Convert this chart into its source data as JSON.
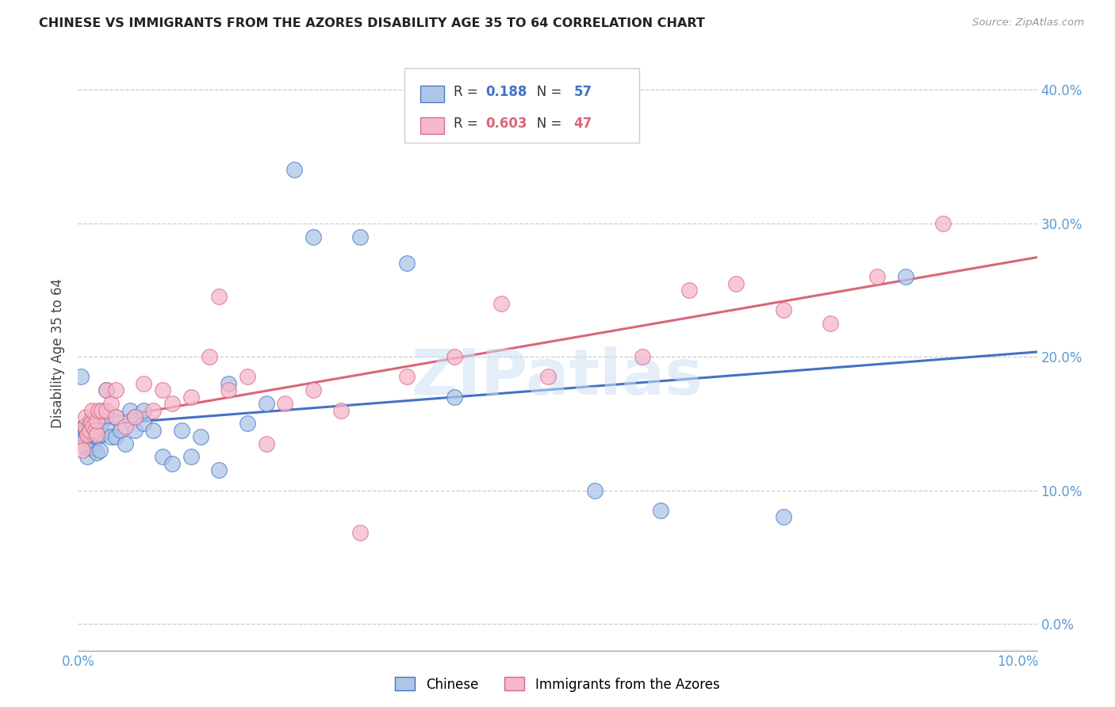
{
  "title": "CHINESE VS IMMIGRANTS FROM THE AZORES DISABILITY AGE 35 TO 64 CORRELATION CHART",
  "source": "Source: ZipAtlas.com",
  "ylabel": "Disability Age 35 to 64",
  "xlim": [
    0.0,
    0.102
  ],
  "ylim": [
    -0.02,
    0.425
  ],
  "ytick_vals": [
    0.0,
    0.1,
    0.2,
    0.3,
    0.4
  ],
  "xtick_vals": [
    0.0,
    0.02,
    0.04,
    0.06,
    0.08,
    0.1
  ],
  "legend_label1": "Chinese",
  "legend_label2": "Immigrants from the Azores",
  "R1": "0.188",
  "N1": "57",
  "R2": "0.603",
  "N2": "47",
  "color_chinese": "#aec6e8",
  "color_azores": "#f5b8cc",
  "line_color_chinese": "#4472c4",
  "line_color_azores": "#d9667a",
  "watermark": "ZIPatlas",
  "chinese_x": [
    0.0003,
    0.0005,
    0.0006,
    0.0007,
    0.0008,
    0.0008,
    0.0009,
    0.001,
    0.001,
    0.001,
    0.0012,
    0.0012,
    0.0013,
    0.0014,
    0.0015,
    0.0016,
    0.0016,
    0.0017,
    0.0018,
    0.002,
    0.002,
    0.0022,
    0.0023,
    0.0024,
    0.0025,
    0.003,
    0.003,
    0.0032,
    0.0035,
    0.004,
    0.004,
    0.0045,
    0.005,
    0.0055,
    0.006,
    0.006,
    0.007,
    0.007,
    0.008,
    0.009,
    0.01,
    0.011,
    0.012,
    0.013,
    0.015,
    0.016,
    0.018,
    0.02,
    0.023,
    0.025,
    0.03,
    0.035,
    0.04,
    0.055,
    0.062,
    0.075,
    0.088
  ],
  "chinese_y": [
    0.185,
    0.145,
    0.148,
    0.14,
    0.138,
    0.145,
    0.135,
    0.125,
    0.132,
    0.142,
    0.135,
    0.15,
    0.138,
    0.142,
    0.148,
    0.132,
    0.15,
    0.145,
    0.14,
    0.128,
    0.14,
    0.14,
    0.13,
    0.148,
    0.142,
    0.175,
    0.155,
    0.145,
    0.14,
    0.14,
    0.155,
    0.145,
    0.135,
    0.16,
    0.145,
    0.155,
    0.15,
    0.16,
    0.145,
    0.125,
    0.12,
    0.145,
    0.125,
    0.14,
    0.115,
    0.18,
    0.15,
    0.165,
    0.34,
    0.29,
    0.29,
    0.27,
    0.17,
    0.1,
    0.085,
    0.08,
    0.26
  ],
  "azores_x": [
    0.0003,
    0.0005,
    0.0007,
    0.0008,
    0.001,
    0.0012,
    0.0013,
    0.0014,
    0.0015,
    0.0016,
    0.0018,
    0.002,
    0.002,
    0.0022,
    0.0025,
    0.003,
    0.003,
    0.0035,
    0.004,
    0.004,
    0.005,
    0.006,
    0.007,
    0.008,
    0.009,
    0.01,
    0.012,
    0.014,
    0.015,
    0.016,
    0.018,
    0.02,
    0.022,
    0.025,
    0.028,
    0.03,
    0.035,
    0.04,
    0.045,
    0.05,
    0.06,
    0.065,
    0.07,
    0.075,
    0.08,
    0.085,
    0.092
  ],
  "azores_y": [
    0.135,
    0.13,
    0.148,
    0.155,
    0.142,
    0.145,
    0.152,
    0.15,
    0.16,
    0.148,
    0.145,
    0.142,
    0.152,
    0.16,
    0.16,
    0.16,
    0.175,
    0.165,
    0.155,
    0.175,
    0.148,
    0.155,
    0.18,
    0.16,
    0.175,
    0.165,
    0.17,
    0.2,
    0.245,
    0.175,
    0.185,
    0.135,
    0.165,
    0.175,
    0.16,
    0.068,
    0.185,
    0.2,
    0.24,
    0.185,
    0.2,
    0.25,
    0.255,
    0.235,
    0.225,
    0.26,
    0.3
  ]
}
